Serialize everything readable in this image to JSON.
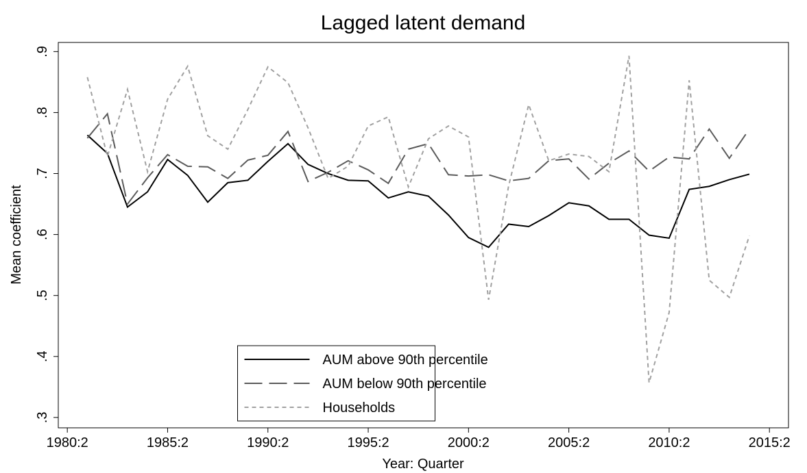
{
  "chart_data": {
    "type": "line",
    "title": "Lagged latent demand",
    "x_label": "Year: Quarter",
    "y_label": "Mean coefficient",
    "x": [
      1981.25,
      1982.25,
      1983.25,
      1984.25,
      1985.25,
      1986.25,
      1987.25,
      1988.25,
      1989.25,
      1990.25,
      1991.25,
      1992.25,
      1993.25,
      1994.25,
      1995.25,
      1996.25,
      1997.25,
      1998.25,
      1999.25,
      2000.25,
      2001.25,
      2002.25,
      2003.25,
      2004.25,
      2005.25,
      2006.25,
      2007.25,
      2008.25,
      2009.25,
      2010.25,
      2011.25,
      2012.25,
      2013.25,
      2014.25
    ],
    "series": [
      {
        "name": "AUM above 90th percentile",
        "color": "#000000",
        "line_style": "solid",
        "values": [
          0.763,
          0.733,
          0.645,
          0.67,
          0.723,
          0.697,
          0.653,
          0.685,
          0.689,
          0.72,
          0.749,
          0.715,
          0.7,
          0.689,
          0.688,
          0.66,
          0.67,
          0.663,
          0.632,
          0.595,
          0.579,
          0.617,
          0.613,
          0.631,
          0.652,
          0.647,
          0.625,
          0.625,
          0.599,
          0.594,
          0.674,
          0.679,
          0.69,
          0.699
        ]
      },
      {
        "name": "AUM below 90th percentile",
        "color": "#5a5a5a",
        "line_style": "long-dash",
        "values": [
          0.758,
          0.798,
          0.65,
          0.693,
          0.731,
          0.712,
          0.711,
          0.692,
          0.722,
          0.73,
          0.769,
          0.687,
          0.702,
          0.721,
          0.706,
          0.684,
          0.74,
          0.749,
          0.698,
          0.696,
          0.698,
          0.688,
          0.692,
          0.721,
          0.724,
          0.691,
          0.717,
          0.737,
          0.704,
          0.727,
          0.724,
          0.773,
          0.725,
          0.773
        ]
      },
      {
        "name": "Households",
        "color": "#a0a0a0",
        "line_style": "short-dash",
        "values": [
          0.858,
          0.728,
          0.838,
          0.703,
          0.822,
          0.876,
          0.762,
          0.74,
          0.805,
          0.875,
          0.849,
          0.775,
          0.692,
          0.712,
          0.778,
          0.793,
          0.678,
          0.757,
          0.778,
          0.76,
          0.493,
          0.68,
          0.813,
          0.721,
          0.732,
          0.728,
          0.703,
          0.893,
          0.357,
          0.472,
          0.853,
          0.525,
          0.497,
          0.598
        ]
      }
    ],
    "xlim": [
      1979.8,
      2016.2
    ],
    "xticks": [
      {
        "value": 1980.25,
        "label": "1980:2"
      },
      {
        "value": 1985.25,
        "label": "1985:2"
      },
      {
        "value": 1990.25,
        "label": "1990:2"
      },
      {
        "value": 1995.25,
        "label": "1995:2"
      },
      {
        "value": 2000.25,
        "label": "2000:2"
      },
      {
        "value": 2005.25,
        "label": "2005:2"
      },
      {
        "value": 2010.25,
        "label": "2010:2"
      },
      {
        "value": 2015.25,
        "label": "2015:2"
      }
    ],
    "ylim": [
      0.283,
      0.915
    ],
    "yticks": [
      {
        "value": 0.3,
        "label": ".3"
      },
      {
        "value": 0.4,
        "label": ".4"
      },
      {
        "value": 0.5,
        "label": ".5"
      },
      {
        "value": 0.6,
        "label": ".6"
      },
      {
        "value": 0.7,
        "label": ".7"
      },
      {
        "value": 0.8,
        "label": ".8"
      },
      {
        "value": 0.9,
        "label": ".9"
      }
    ],
    "grid": false,
    "legend_position": "bottom"
  }
}
